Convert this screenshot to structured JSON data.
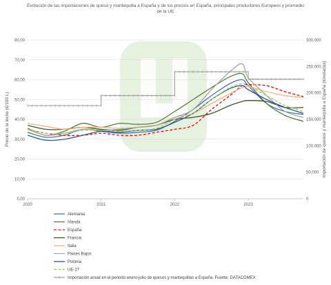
{
  "chart_data": {
    "type": "line",
    "title_lines": [
      "Evolución de las importaciones de queso y mantequilla a España y de los precios en  España, principales productores Europeos y promedio",
      "de la UE"
    ],
    "ylabel": "Precio de la leche (€/100 L)",
    "ylabel_right": "Importación de quesos y mantequilla a España (toneladas)",
    "ylim": [
      0,
      80
    ],
    "yticks": [
      "0,00",
      "10,00",
      "20,00",
      "30,00",
      "40,00",
      "50,00",
      "60,00",
      "70,00",
      "80,00"
    ],
    "y2lim": [
      0,
      300000
    ],
    "y2ticks": [
      "0",
      "50.000",
      "100.000",
      "150.000",
      "200.000",
      "250.000",
      "300.000"
    ],
    "xlim": [
      2020,
      2023.75
    ],
    "xticks": [
      "2020",
      "2021",
      "2022",
      "2023"
    ],
    "x": [
      2020.0,
      2020.25,
      2020.5,
      2020.75,
      2021.0,
      2021.25,
      2021.5,
      2021.75,
      2022.0,
      2022.25,
      2022.5,
      2022.75,
      2022.917,
      2023.0,
      2023.25,
      2023.5,
      2023.75
    ],
    "series": [
      {
        "name": "Alemania",
        "color": "#4472C4",
        "dash": "solid",
        "values": [
          33.5,
          31.0,
          32.0,
          35.0,
          34.0,
          33.0,
          33.5,
          34.5,
          39.0,
          45.0,
          52.0,
          58.0,
          60.0,
          57.0,
          48.0,
          44.0,
          42.5
        ]
      },
      {
        "name": "Irlanda",
        "color": "#548235",
        "dash": "solid",
        "values": [
          35.5,
          32.0,
          34.0,
          38.0,
          36.0,
          38.0,
          37.5,
          38.5,
          44.0,
          50.0,
          56.0,
          61.5,
          63.0,
          58.5,
          48.0,
          42.0,
          39.0
        ]
      },
      {
        "name": "España",
        "color": "#FF0000",
        "dash": "dashed",
        "values": [
          35.0,
          33.0,
          32.0,
          32.0,
          33.0,
          32.0,
          32.0,
          33.5,
          35.0,
          37.0,
          45.0,
          52.0,
          57.0,
          57.5,
          57.0,
          54.0,
          51.5
        ]
      },
      {
        "name": "Francia",
        "color": "#375623",
        "dash": "solid",
        "values": [
          37.0,
          35.0,
          35.0,
          36.0,
          35.0,
          34.5,
          36.0,
          37.0,
          40.0,
          41.0,
          43.0,
          47.0,
          49.0,
          49.5,
          49.0,
          46.0,
          46.0
        ]
      },
      {
        "name": "Italia",
        "color": "#F4B183",
        "dash": "solid",
        "values": [
          38.0,
          36.5,
          35.0,
          36.0,
          36.0,
          35.5,
          36.0,
          37.0,
          41.0,
          43.0,
          48.0,
          53.0,
          56.0,
          56.5,
          54.0,
          52.0,
          51.0
        ]
      },
      {
        "name": "Paises Bajos",
        "color": "#A5A5A5",
        "dash": "solid",
        "values": [
          35.0,
          32.0,
          33.0,
          35.0,
          34.5,
          35.0,
          36.0,
          37.0,
          41.0,
          45.0,
          55.0,
          64.0,
          68.0,
          61.0,
          52.0,
          44.0,
          41.0
        ]
      },
      {
        "name": "Polonia",
        "color": "#2F5597",
        "dash": "solid",
        "values": [
          32.0,
          29.5,
          30.0,
          32.0,
          34.0,
          33.5,
          34.5,
          35.0,
          38.5,
          43.0,
          50.0,
          55.5,
          57.0,
          55.0,
          50.0,
          46.0,
          43.0
        ]
      },
      {
        "name": "UE-27",
        "color": "#92D050",
        "dash": "dashed",
        "values": [
          35.0,
          33.0,
          33.0,
          34.5,
          34.5,
          34.0,
          34.5,
          35.5,
          40.0,
          43.0,
          50.0,
          56.0,
          58.0,
          57.0,
          52.0,
          47.0,
          44.0
        ]
      }
    ],
    "secondary_series": {
      "name": "Importación anual en el periodo enero-julio de quesos y mantequillas a España. Fuente: DATACOMEX",
      "color": "#A5A5A5",
      "axis": "right",
      "steps": [
        {
          "x0": 2020.0,
          "x1": 2021.0,
          "value": 176000
        },
        {
          "x0": 2021.0,
          "x1": 2022.0,
          "value": 195000
        },
        {
          "x0": 2022.0,
          "x1": 2023.0,
          "value": 240000
        },
        {
          "x0": 2023.0,
          "x1": 2023.75,
          "value": 226000
        }
      ]
    },
    "grid": true,
    "legend": "bottom-left"
  }
}
